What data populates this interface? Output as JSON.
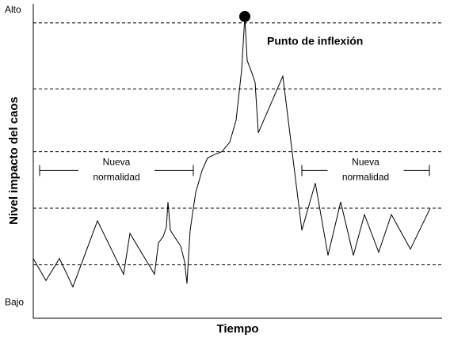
{
  "chart_data": {
    "type": "line",
    "x_label": "Tiempo",
    "y_label": "Nivel impacto del caos",
    "xlim": [
      0,
      516
    ],
    "ylim": [
      0,
      100
    ],
    "yticks": [
      {
        "value": 5,
        "label": "Bajo"
      },
      {
        "value": 98,
        "label": "Alto"
      }
    ],
    "hlines": [
      94,
      73,
      53,
      35,
      17
    ],
    "x": [
      0,
      16,
      33,
      50,
      81,
      114,
      122,
      153,
      158,
      164,
      168,
      170,
      173,
      178,
      186,
      191,
      194,
      198,
      205,
      213,
      220,
      228,
      238,
      248,
      256,
      263,
      267,
      270,
      276,
      280,
      284,
      315,
      339,
      356,
      372,
      388,
      404,
      418,
      436,
      452,
      476,
      501
    ],
    "series": [
      {
        "color": "#000000",
        "values": [
          19,
          12,
          19,
          10,
          31,
          14,
          27,
          14,
          24,
          26,
          29,
          37,
          28,
          26,
          23,
          18,
          11,
          28,
          40,
          47,
          51,
          52,
          53,
          56,
          63,
          79,
          96,
          82,
          78,
          75,
          59,
          77,
          28,
          43,
          20,
          37,
          20,
          33,
          21,
          33,
          22,
          35
        ]
      }
    ],
    "annotations": [
      {
        "text": "Punto de inflexión",
        "x": 267,
        "y": 96
      }
    ],
    "ranges": [
      {
        "lines": [
          "Nueva",
          "normalidad"
        ],
        "x": [
          8,
          202
        ],
        "y": 47
      },
      {
        "lines": [
          "Nueva",
          "normalidad"
        ],
        "x": [
          339,
          500
        ],
        "y": 47
      }
    ]
  }
}
